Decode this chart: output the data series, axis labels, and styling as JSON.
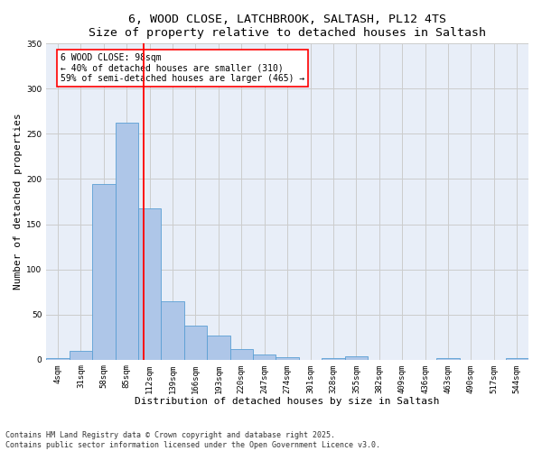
{
  "title_line1": "6, WOOD CLOSE, LATCHBROOK, SALTASH, PL12 4TS",
  "title_line2": "Size of property relative to detached houses in Saltash",
  "xlabel": "Distribution of detached houses by size in Saltash",
  "ylabel": "Number of detached properties",
  "bin_labels": [
    "4sqm",
    "31sqm",
    "58sqm",
    "85sqm",
    "112sqm",
    "139sqm",
    "166sqm",
    "193sqm",
    "220sqm",
    "247sqm",
    "274sqm",
    "301sqm",
    "328sqm",
    "355sqm",
    "382sqm",
    "409sqm",
    "436sqm",
    "463sqm",
    "490sqm",
    "517sqm",
    "544sqm"
  ],
  "bar_heights": [
    2,
    10,
    195,
    262,
    168,
    65,
    38,
    27,
    12,
    6,
    3,
    0,
    2,
    4,
    0,
    0,
    0,
    2,
    0,
    0,
    2
  ],
  "bar_color": "#aec6e8",
  "bar_edge_color": "#5a9fd4",
  "red_line_index": 3.72,
  "annotation_text": "6 WOOD CLOSE: 98sqm\n← 40% of detached houses are smaller (310)\n59% of semi-detached houses are larger (465) →",
  "annotation_box_color": "white",
  "annotation_box_edge_color": "red",
  "red_line_color": "red",
  "ylim": [
    0,
    350
  ],
  "yticks": [
    0,
    50,
    100,
    150,
    200,
    250,
    300,
    350
  ],
  "grid_color": "#cccccc",
  "background_color": "#e8eef8",
  "footer_text": "Contains HM Land Registry data © Crown copyright and database right 2025.\nContains public sector information licensed under the Open Government Licence v3.0.",
  "title_fontsize": 9.5,
  "axis_label_fontsize": 8,
  "tick_fontsize": 6.5,
  "annotation_fontsize": 7,
  "footer_fontsize": 6
}
